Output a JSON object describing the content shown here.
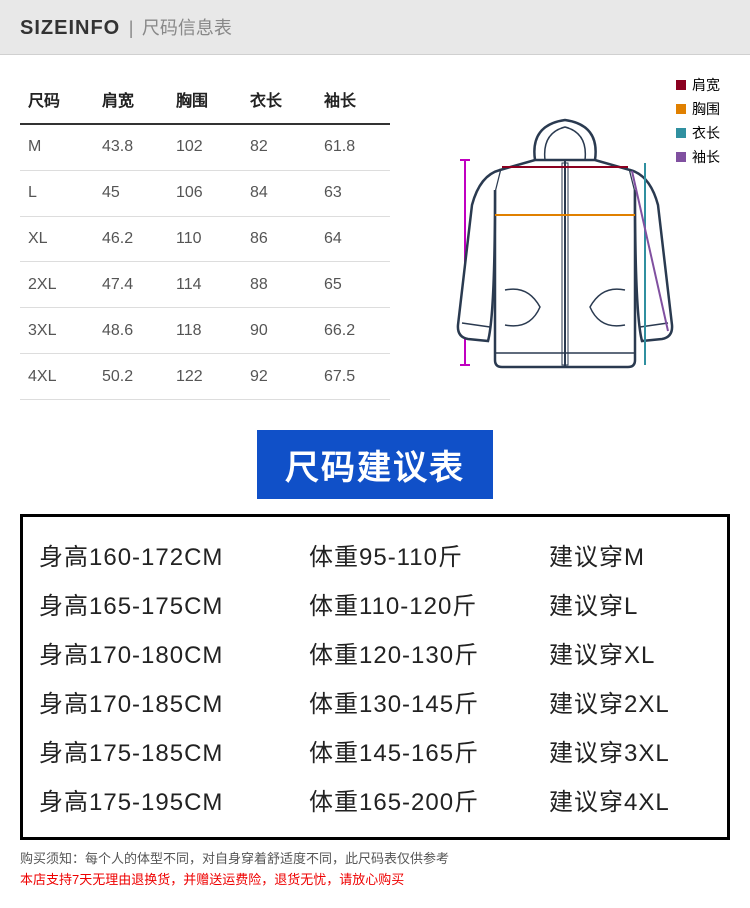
{
  "header": {
    "title": "SIZEINFO",
    "divider": "|",
    "sub": "尺码信息表"
  },
  "sizeTable": {
    "columns": [
      "尺码",
      "肩宽",
      "胸围",
      "衣长",
      "袖长"
    ],
    "rows": [
      [
        "M",
        "43.8",
        "102",
        "82",
        "61.8"
      ],
      [
        "L",
        "45",
        "106",
        "84",
        "63"
      ],
      [
        "XL",
        "46.2",
        "110",
        "86",
        "64"
      ],
      [
        "2XL",
        "47.4",
        "114",
        "88",
        "65"
      ],
      [
        "3XL",
        "48.6",
        "118",
        "90",
        "66.2"
      ],
      [
        "4XL",
        "50.2",
        "122",
        "92",
        "67.5"
      ]
    ]
  },
  "legend": [
    {
      "color": "#8b0020",
      "label": "肩宽"
    },
    {
      "color": "#e08000",
      "label": "胸围"
    },
    {
      "color": "#3090a0",
      "label": "衣长"
    },
    {
      "color": "#8050a0",
      "label": "袖长"
    }
  ],
  "midTitle": "尺码建议表",
  "recommendations": [
    {
      "h": "身高160-172CM",
      "w": "体重95-110斤",
      "s": "建议穿M"
    },
    {
      "h": "身高165-175CM",
      "w": "体重110-120斤",
      "s": "建议穿L"
    },
    {
      "h": "身高170-180CM",
      "w": "体重120-130斤",
      "s": "建议穿XL"
    },
    {
      "h": "身高170-185CM",
      "w": "体重130-145斤",
      "s": "建议穿2XL"
    },
    {
      "h": "身高175-185CM",
      "w": "体重145-165斤",
      "s": "建议穿3XL"
    },
    {
      "h": "身高175-195CM",
      "w": "体重165-200斤",
      "s": "建议穿4XL"
    }
  ],
  "note1": "购买须知：每个人的体型不同，对自身穿着舒适度不同，此尺码表仅供参考",
  "note2": "本店支持7天无理由退换货，并赠送运费险，退货无忧，请放心购买",
  "diagram": {
    "outline": "#2a3a50",
    "shoulder_line": "#8b0020",
    "chest_line": "#e08000",
    "length_line": "#3090a0",
    "sleeve_line": "#8050a0",
    "length_marker": "#c000c0"
  }
}
